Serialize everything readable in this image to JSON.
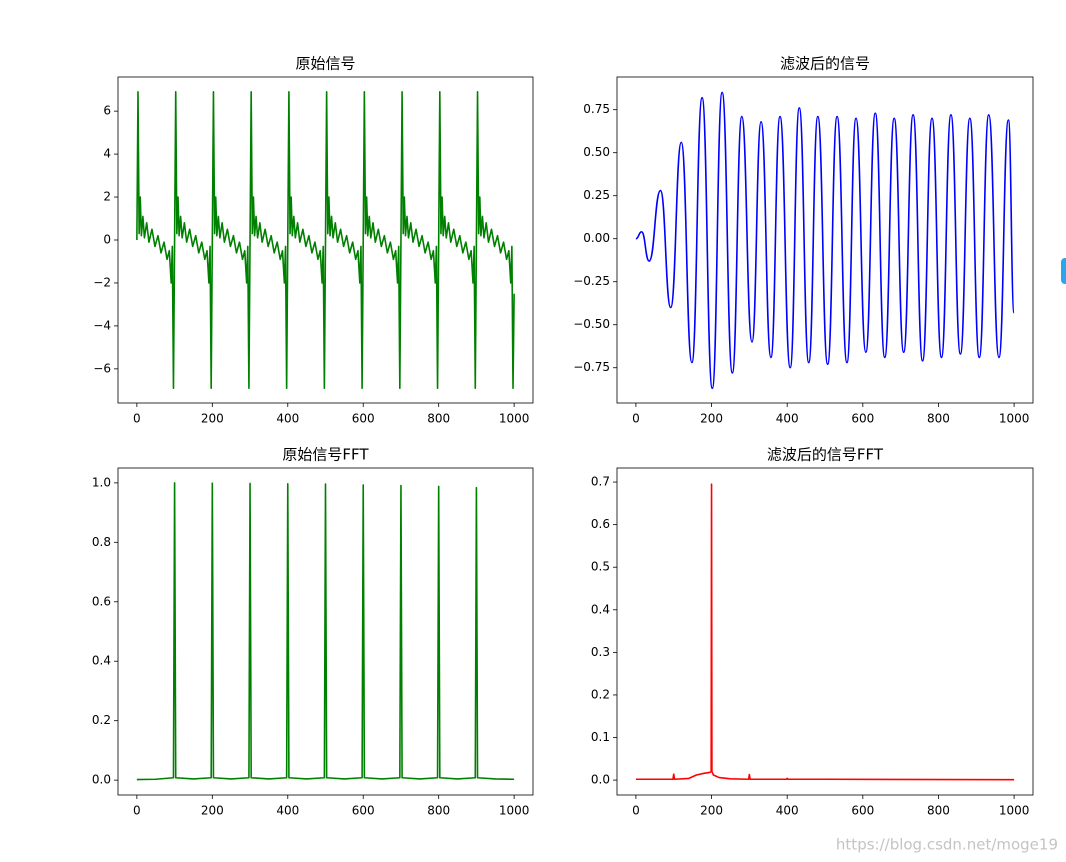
{
  "chart_data": [
    {
      "type": "line",
      "title": "原始信号",
      "color": "#008000",
      "xlim": [
        -50,
        1050
      ],
      "ylim": [
        -7.59,
        7.59
      ],
      "xticks": [
        0,
        200,
        400,
        600,
        800,
        1000
      ],
      "yticks": [
        {
          "value": -6,
          "label": "−6"
        },
        {
          "value": -4,
          "label": "−4"
        },
        {
          "value": -2,
          "label": "−2"
        },
        0,
        2,
        4,
        6
      ],
      "x": [
        0,
        3,
        6,
        9,
        12,
        16,
        20,
        26,
        32,
        40,
        48,
        56,
        64,
        72,
        80,
        86,
        91,
        94,
        97,
        100,
        103,
        106,
        109,
        112,
        116,
        120,
        126,
        132,
        140,
        148,
        156,
        164,
        172,
        180,
        186,
        191,
        194,
        197,
        200,
        203,
        206,
        209,
        212,
        216,
        220,
        226,
        232,
        240,
        248,
        256,
        264,
        272,
        280,
        286,
        291,
        294,
        297,
        300,
        303,
        306,
        309,
        312,
        316,
        320,
        326,
        332,
        340,
        348,
        356,
        364,
        372,
        380,
        386,
        391,
        394,
        397,
        400,
        403,
        406,
        409,
        412,
        416,
        420,
        426,
        432,
        440,
        448,
        456,
        464,
        472,
        480,
        486,
        491,
        494,
        497,
        500,
        503,
        506,
        509,
        512,
        516,
        520,
        526,
        532,
        540,
        548,
        556,
        564,
        572,
        580,
        586,
        591,
        594,
        597,
        600,
        603,
        606,
        609,
        612,
        616,
        620,
        626,
        632,
        640,
        648,
        656,
        664,
        672,
        680,
        686,
        691,
        694,
        697,
        700,
        703,
        706,
        709,
        712,
        716,
        720,
        726,
        732,
        740,
        748,
        756,
        764,
        772,
        780,
        786,
        791,
        794,
        797,
        800,
        803,
        806,
        809,
        812,
        816,
        820,
        826,
        832,
        840,
        848,
        856,
        864,
        872,
        880,
        886,
        891,
        894,
        897,
        900,
        903,
        906,
        909,
        912,
        916,
        920,
        926,
        932,
        940,
        948,
        956,
        964,
        972,
        980,
        986,
        991,
        994,
        997,
        1000
      ],
      "values": [
        0,
        6.9,
        0.3,
        2.0,
        0.2,
        1.1,
        0.1,
        0.8,
        -0.1,
        0.5,
        -0.3,
        0.2,
        -0.6,
        -0.1,
        -0.9,
        -0.5,
        -2.0,
        -0.3,
        -6.9,
        0,
        6.9,
        0.3,
        2.0,
        0.2,
        1.1,
        0.1,
        0.8,
        -0.1,
        0.5,
        -0.3,
        0.2,
        -0.6,
        -0.1,
        -0.9,
        -0.5,
        -2.0,
        -0.3,
        -6.9,
        0,
        6.9,
        0.3,
        2.0,
        0.2,
        1.1,
        0.1,
        0.8,
        -0.1,
        0.5,
        -0.3,
        0.2,
        -0.6,
        -0.1,
        -0.9,
        -0.5,
        -2.0,
        -0.3,
        -6.9,
        0,
        6.9,
        0.3,
        2.0,
        0.2,
        1.1,
        0.1,
        0.8,
        -0.1,
        0.5,
        -0.3,
        0.2,
        -0.6,
        -0.1,
        -0.9,
        -0.5,
        -2.0,
        -0.3,
        -6.9,
        0,
        6.9,
        0.3,
        2.0,
        0.2,
        1.1,
        0.1,
        0.8,
        -0.1,
        0.5,
        -0.3,
        0.2,
        -0.6,
        -0.1,
        -0.9,
        -0.5,
        -2.0,
        -0.3,
        -6.9,
        0,
        6.9,
        0.3,
        2.0,
        0.2,
        1.1,
        0.1,
        0.8,
        -0.1,
        0.5,
        -0.3,
        0.2,
        -0.6,
        -0.1,
        -0.9,
        -0.5,
        -2.0,
        -0.3,
        -6.9,
        0,
        6.9,
        0.3,
        2.0,
        0.2,
        1.1,
        0.1,
        0.8,
        -0.1,
        0.5,
        -0.3,
        0.2,
        -0.6,
        -0.1,
        -0.9,
        -0.5,
        -2.0,
        -0.3,
        -6.9,
        0,
        6.9,
        0.3,
        2.0,
        0.2,
        1.1,
        0.1,
        0.8,
        -0.1,
        0.5,
        -0.3,
        0.2,
        -0.6,
        -0.1,
        -0.9,
        -0.5,
        -2.0,
        -0.3,
        -6.9,
        0,
        6.9,
        0.3,
        2.0,
        0.2,
        1.1,
        0.1,
        0.8,
        -0.1,
        0.5,
        -0.3,
        0.2,
        -0.6,
        -0.1,
        -0.9,
        -0.5,
        -2.0,
        -0.3,
        -6.9,
        0,
        6.9,
        0.3,
        2.0,
        0.2,
        1.1,
        0.1,
        0.8,
        -0.1,
        0.5,
        -0.3,
        0.2,
        -0.6,
        -0.1,
        -0.9,
        -0.5,
        -2.0,
        -0.3,
        -6.9,
        -2.5
      ]
    },
    {
      "type": "line",
      "title": "滤波后的信号",
      "color": "#0000ff",
      "smooth": true,
      "xlim": [
        -50,
        1050
      ],
      "ylim": [
        -0.955,
        0.94
      ],
      "xticks": [
        0,
        200,
        400,
        600,
        800,
        1000
      ],
      "yticks": [
        {
          "value": -0.75,
          "label": "−0.75"
        },
        {
          "value": -0.5,
          "label": "−0.50"
        },
        {
          "value": -0.25,
          "label": "−0.25"
        },
        {
          "value": 0,
          "label": "0.00"
        },
        0.25,
        {
          "value": 0.5,
          "label": "0.50"
        },
        0.75
      ],
      "x": [
        0,
        15,
        35,
        65,
        92,
        120,
        148,
        175,
        202,
        228,
        255,
        280,
        307,
        331,
        357,
        381,
        408,
        432,
        457,
        481,
        507,
        532,
        558,
        582,
        608,
        633,
        658,
        683,
        708,
        733,
        758,
        783,
        808,
        833,
        858,
        883,
        908,
        933,
        960,
        985,
        1000
      ],
      "values": [
        0,
        0.04,
        -0.13,
        0.28,
        -0.4,
        0.56,
        -0.72,
        0.82,
        -0.87,
        0.85,
        -0.78,
        0.71,
        -0.6,
        0.68,
        -0.69,
        0.71,
        -0.75,
        0.76,
        -0.72,
        0.71,
        -0.73,
        0.71,
        -0.72,
        0.7,
        -0.66,
        0.73,
        -0.69,
        0.7,
        -0.66,
        0.72,
        -0.71,
        0.7,
        -0.69,
        0.72,
        -0.67,
        0.7,
        -0.69,
        0.72,
        -0.69,
        0.69,
        -0.43
      ]
    },
    {
      "type": "line",
      "title": "原始信号FFT",
      "color": "#008000",
      "xlim": [
        -50,
        1050
      ],
      "ylim": [
        -0.05,
        1.05
      ],
      "xticks": [
        0,
        200,
        400,
        600,
        800,
        1000
      ],
      "yticks": [
        {
          "value": 0,
          "label": "0.0"
        },
        0.2,
        0.4,
        0.6,
        0.8,
        {
          "value": 1,
          "label": "1.0"
        }
      ],
      "x": [
        0,
        50,
        97,
        100,
        103,
        150,
        197,
        200,
        203,
        250,
        297,
        300,
        303,
        350,
        397,
        400,
        403,
        450,
        497,
        500,
        503,
        550,
        597,
        600,
        603,
        650,
        697,
        700,
        703,
        750,
        797,
        800,
        803,
        850,
        897,
        900,
        903,
        950,
        1000
      ],
      "values": [
        0.002,
        0.003,
        0.008,
        1.0,
        0.008,
        0.004,
        0.008,
        0.999,
        0.008,
        0.004,
        0.008,
        0.998,
        0.008,
        0.004,
        0.008,
        0.997,
        0.008,
        0.004,
        0.008,
        0.996,
        0.008,
        0.004,
        0.008,
        0.993,
        0.008,
        0.004,
        0.008,
        0.991,
        0.008,
        0.004,
        0.008,
        0.988,
        0.008,
        0.004,
        0.008,
        0.984,
        0.008,
        0.004,
        0.003
      ]
    },
    {
      "type": "line",
      "title": "滤波后的信号FFT",
      "color": "#ff0000",
      "xlim": [
        -50,
        1050
      ],
      "ylim": [
        -0.035,
        0.733
      ],
      "xticks": [
        0,
        200,
        400,
        600,
        800,
        1000
      ],
      "yticks": [
        {
          "value": 0,
          "label": "0.0"
        },
        0.1,
        0.2,
        0.3,
        0.4,
        0.5,
        0.6,
        0.7
      ],
      "x": [
        0,
        98,
        100,
        102,
        140,
        160,
        180,
        195,
        199,
        200,
        201,
        205,
        220,
        250,
        298,
        300,
        302,
        398,
        400,
        402,
        500,
        1000
      ],
      "values": [
        0.002,
        0.002,
        0.014,
        0.002,
        0.004,
        0.012,
        0.016,
        0.018,
        0.02,
        0.695,
        0.02,
        0.012,
        0.006,
        0.003,
        0.002,
        0.013,
        0.002,
        0.002,
        0.004,
        0.002,
        0.002,
        0.001
      ]
    }
  ],
  "watermark": "https://blog.csdn.net/moge19"
}
